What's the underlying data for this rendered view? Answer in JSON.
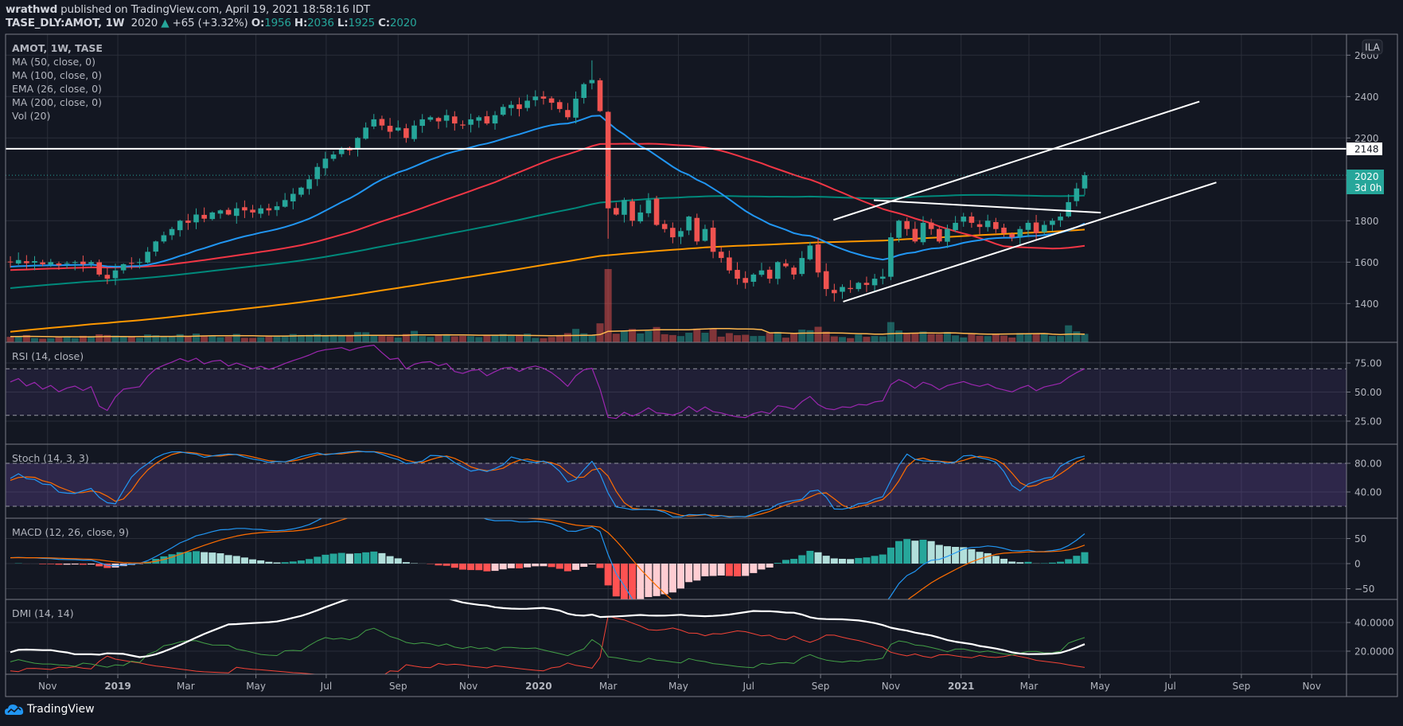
{
  "header": {
    "author": "wrathwd",
    "published_text": "published on TradingView.com, April 19, 2021 18:58:16 IDT",
    "symbol_line": "TASE_DLY:AMOT, 1W",
    "last": "2020",
    "change": "+65 (+3.32%)",
    "o_label": "O:",
    "o": "1956",
    "h_label": "H:",
    "h": "2036",
    "l_label": "L:",
    "l": "1925",
    "c_label": "C:",
    "c": "2020"
  },
  "legend": {
    "title": "AMOT, 1W, TASE",
    "items": [
      "MA (50, close, 0)",
      "MA (100, close, 0)",
      "EMA (26, close, 0)",
      "MA (200, close, 0)",
      "Vol (20)"
    ]
  },
  "currency_badge": "ILA",
  "price_labels": {
    "level": "2148",
    "last": "2020",
    "countdown": "3d 0h"
  },
  "pane_titles": {
    "rsi": "RSI (14, close)",
    "stoch": "Stoch (14, 3, 3)",
    "macd": "MACD (12, 26, close, 9)",
    "dmi": "DMI (14, 14)"
  },
  "footer": {
    "brand": "TradingView"
  },
  "colors": {
    "up": "#26a69a",
    "down": "#ef5350",
    "ema26": "#2196f3",
    "ma50": "#f23645",
    "ma100": "#00897b",
    "ma200": "#ff9800",
    "rsi": "#9c27b0",
    "stoch_k": "#2196f3",
    "stoch_d": "#ff6d00",
    "macd": "#2196f3",
    "signal": "#ff6d00",
    "adx": "#ffffff",
    "plus_di": "#43a047",
    "minus_di": "#f44336"
  },
  "chart_data": {
    "type": "candlestick",
    "symbol": "TASE_DLY:AMOT",
    "interval": "1W",
    "last_bar": {
      "open": 1956,
      "high": 2036,
      "low": 1925,
      "close": 2020
    },
    "weekly_closes": [
      1600,
      1610,
      1595,
      1605,
      1590,
      1600,
      1585,
      1595,
      1600,
      1590,
      1600,
      1540,
      1520,
      1560,
      1590,
      1595,
      1600,
      1650,
      1700,
      1730,
      1760,
      1800,
      1790,
      1830,
      1810,
      1840,
      1850,
      1830,
      1860,
      1850,
      1840,
      1860,
      1850,
      1870,
      1900,
      1930,
      1960,
      2000,
      2060,
      2100,
      2120,
      2150,
      2140,
      2200,
      2250,
      2290,
      2260,
      2230,
      2250,
      2200,
      2260,
      2290,
      2300,
      2280,
      2310,
      2270,
      2260,
      2290,
      2300,
      2270,
      2310,
      2350,
      2360,
      2340,
      2380,
      2400,
      2390,
      2370,
      2340,
      2300,
      2390,
      2460,
      2480,
      2330,
      1860,
      1830,
      1900,
      1800,
      1840,
      1900,
      1780,
      1760,
      1720,
      1750,
      1820,
      1700,
      1760,
      1650,
      1620,
      1560,
      1520,
      1500,
      1540,
      1560,
      1520,
      1600,
      1580,
      1540,
      1620,
      1680,
      1550,
      1470,
      1450,
      1480,
      1470,
      1500,
      1490,
      1520,
      1530,
      1720,
      1800,
      1760,
      1700,
      1790,
      1760,
      1700,
      1760,
      1790,
      1820,
      1790,
      1770,
      1800,
      1760,
      1740,
      1720,
      1760,
      1790,
      1740,
      1780,
      1800,
      1820,
      1890,
      1956,
      2020
    ],
    "notable_extremes": [
      {
        "week": 72,
        "high": 2575
      },
      {
        "week": 74,
        "high": 2330,
        "low": 1713
      },
      {
        "week": 102,
        "low": 1410
      },
      {
        "week": 133,
        "high": 2036,
        "low": 1925
      }
    ],
    "price_axis": {
      "ticks": [
        1400,
        1600,
        1800,
        2000,
        2200,
        2400,
        2600
      ],
      "show_labels": [
        1400,
        1600,
        1800,
        2200,
        2400,
        2600
      ],
      "scale": "linear"
    },
    "x_axis_ticks": [
      {
        "label": "Nov",
        "week": 4.6,
        "bold": false
      },
      {
        "label": "2019",
        "week": 13.3,
        "bold": true
      },
      {
        "label": "Mar",
        "week": 21.7,
        "bold": false
      },
      {
        "label": "May",
        "week": 30.4,
        "bold": false
      },
      {
        "label": "Jul",
        "week": 39.1,
        "bold": false
      },
      {
        "label": "Sep",
        "week": 48.0,
        "bold": false
      },
      {
        "label": "Nov",
        "week": 56.7,
        "bold": false
      },
      {
        "label": "2020",
        "week": 65.4,
        "bold": true
      },
      {
        "label": "Mar",
        "week": 74.0,
        "bold": false
      },
      {
        "label": "May",
        "week": 82.7,
        "bold": false
      },
      {
        "label": "Jul",
        "week": 91.4,
        "bold": false
      },
      {
        "label": "Sep",
        "week": 100.3,
        "bold": false
      },
      {
        "label": "Nov",
        "week": 109.0,
        "bold": false
      },
      {
        "label": "2021",
        "week": 117.7,
        "bold": true
      },
      {
        "label": "Mar",
        "week": 126.1,
        "bold": false
      },
      {
        "label": "May",
        "week": 134.9,
        "bold": false
      },
      {
        "label": "Jul",
        "week": 143.6,
        "bold": false
      },
      {
        "label": "Sep",
        "week": 152.4,
        "bold": false
      },
      {
        "label": "Nov",
        "week": 161.1,
        "bold": false
      }
    ],
    "drawings": [
      {
        "type": "horizontal",
        "price": 2148
      },
      {
        "type": "trendline",
        "from": [
          101.9,
          1804
        ],
        "to": [
          147.2,
          2376
        ]
      },
      {
        "type": "trendline",
        "from": [
          103.1,
          1409
        ],
        "to": [
          149.3,
          1985
        ]
      },
      {
        "type": "trendline",
        "from": [
          106.9,
          1899
        ],
        "to": [
          135.0,
          1839
        ]
      }
    ],
    "indicators": {
      "rsi": {
        "ticks": [
          "75.00",
          "50.00",
          "25.00"
        ],
        "tick_values": [
          75,
          50,
          25
        ],
        "band": [
          30,
          70
        ]
      },
      "stoch": {
        "ticks": [
          "80.00",
          "40.00"
        ],
        "tick_values": [
          80,
          40
        ],
        "band": [
          20,
          80
        ]
      },
      "macd": {
        "ticks": [
          "50",
          "0",
          "−50"
        ],
        "tick_values": [
          50,
          0,
          -50
        ]
      },
      "dmi": {
        "ticks": [
          "40.0000",
          "20.0000"
        ],
        "tick_values": [
          40,
          20
        ]
      }
    }
  }
}
